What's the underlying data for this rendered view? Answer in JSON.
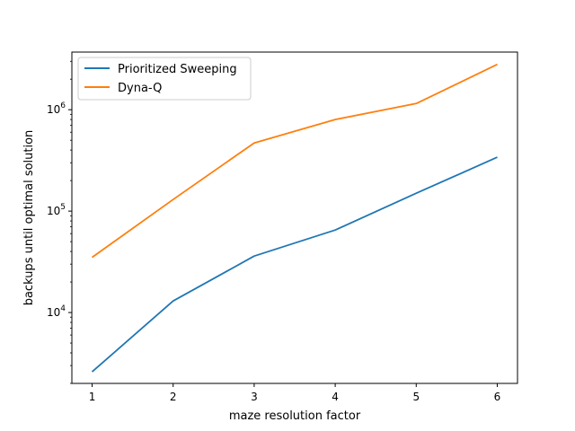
{
  "chart_data": {
    "type": "line",
    "title": "",
    "xlabel": "maze resolution factor",
    "ylabel": "backups until optimal solution",
    "x": [
      1,
      2,
      3,
      4,
      5,
      6
    ],
    "xlim": [
      0.75,
      6.25
    ],
    "ylim": [
      2000,
      3700000
    ],
    "yscale": "log",
    "x_ticks": [
      1,
      2,
      3,
      4,
      5,
      6
    ],
    "y_ticks": [
      {
        "value": 10000,
        "base": "10",
        "exp": "4"
      },
      {
        "value": 100000,
        "base": "10",
        "exp": "5"
      },
      {
        "value": 1000000,
        "base": "10",
        "exp": "6"
      }
    ],
    "grid": false,
    "legend": "top-left",
    "series": [
      {
        "name": "Prioritized Sweeping",
        "color": "#1f77b4",
        "values": [
          2600,
          13000,
          36000,
          65000,
          150000,
          340000
        ]
      },
      {
        "name": "Dyna-Q",
        "color": "#ff7f0e",
        "values": [
          35000,
          130000,
          470000,
          800000,
          1150000,
          2800000
        ]
      }
    ]
  }
}
